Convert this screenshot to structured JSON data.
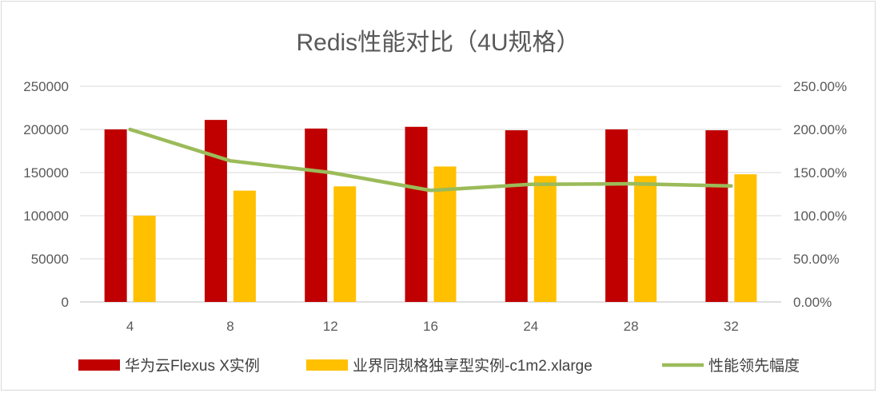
{
  "chart_data": {
    "type": "bar",
    "title": "Redis性能对比（4U规格）",
    "categories": [
      "4",
      "8",
      "12",
      "16",
      "24",
      "28",
      "32"
    ],
    "series": [
      {
        "name": "华为云Flexus X实例",
        "type": "bar",
        "axis": "left",
        "color": "#c00000",
        "values": [
          200000,
          211000,
          201000,
          203000,
          199000,
          200000,
          199000
        ]
      },
      {
        "name": "业界同规格独享型实例-c1m2.xlarge",
        "type": "bar",
        "axis": "left",
        "color": "#ffc000",
        "values": [
          100000,
          129000,
          134000,
          157000,
          146000,
          146000,
          148000
        ]
      },
      {
        "name": "性能领先幅度",
        "type": "line",
        "axis": "right",
        "color": "#9bbb59",
        "values": [
          200.0,
          163.6,
          150.0,
          129.3,
          136.3,
          137.0,
          134.5
        ]
      }
    ],
    "y_left": {
      "ylim": [
        0,
        250000
      ],
      "ticks": [
        "0",
        "50000",
        "100000",
        "150000",
        "200000",
        "250000"
      ]
    },
    "y_right": {
      "ylim": [
        0,
        250
      ],
      "ticks": [
        "0.00%",
        "50.00%",
        "100.00%",
        "150.00%",
        "200.00%",
        "250.00%"
      ]
    },
    "grid": true,
    "legend_position": "bottom"
  }
}
